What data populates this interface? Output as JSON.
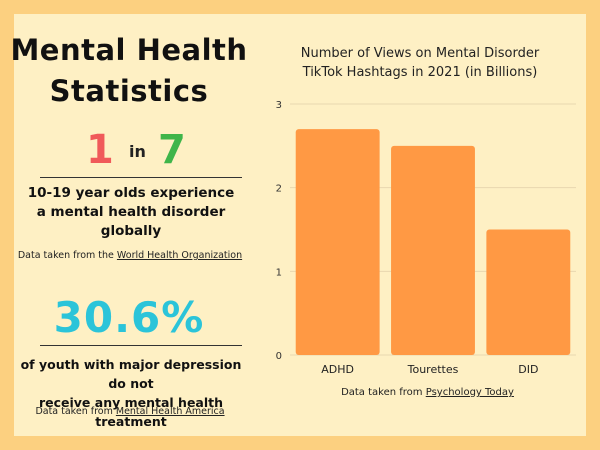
{
  "left": {
    "title_line1": "Mental Health",
    "title_line2": "Statistics",
    "ratio": {
      "num1": "1",
      "word": "in",
      "num2": "7"
    },
    "stat1": {
      "line1": "10-19 year olds experience",
      "line2": "a mental health disorder",
      "line3": "globally"
    },
    "source1": {
      "prefix": "Data taken from the",
      "link": "World Health Organization"
    },
    "big_stat": "30.6%",
    "stat2": {
      "line1": "of youth with major depression do not",
      "line2": "receive any mental health treatment"
    },
    "source2": {
      "prefix": "Data taken from",
      "link": "Mental Health America"
    }
  },
  "chart_source": {
    "prefix": "Data taken from",
    "link": "Psychology Today"
  },
  "colors": {
    "background": "#FCD080",
    "panel": "#FEF0C4",
    "bar": "#FF9944",
    "ratio_number": "#F05A5A",
    "ratio_number2": "#3FB54A",
    "big_stat": "#2BC4D9"
  },
  "chart_data": {
    "type": "bar",
    "title": "Number of Views on Mental Disorder TikTok Hashtags in 2021 (in Billions)",
    "title_line1": "Number of Views on Mental Disorder",
    "title_line2": "TikTok Hashtags in 2021 (in Billions)",
    "categories": [
      "ADHD",
      "Tourettes",
      "DID"
    ],
    "values": [
      2.7,
      2.5,
      1.5
    ],
    "ylim": [
      0,
      3
    ],
    "yticks": [
      "0",
      "1",
      "2",
      "3"
    ],
    "grid": true,
    "xlabel": "",
    "ylabel": ""
  }
}
